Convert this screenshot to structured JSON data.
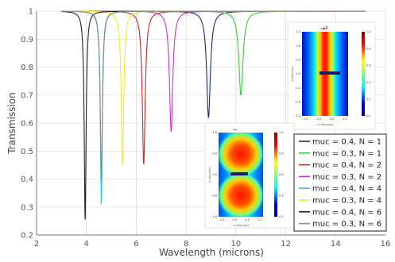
{
  "chart_data": [
    {
      "type": "line",
      "xlabel": "Wavelength (microns)",
      "ylabel": "Transmission",
      "xlim": [
        2,
        16
      ],
      "ylim": [
        0.2,
        1.0
      ],
      "x_ticks": [
        "2",
        "4",
        "6",
        "8",
        "10",
        "12",
        "14",
        "16"
      ],
      "y_ticks": [
        "0.2",
        "0.3",
        "0.4",
        "0.5",
        "0.6",
        "0.7",
        "0.8",
        "0.9",
        "1"
      ],
      "grid": true,
      "legend_position": "bottom-right",
      "series": [
        {
          "name": "muc = 0.4, N = 1",
          "color": "#1a2a8a",
          "x_range": [
            3.0,
            15.2
          ],
          "dip_x": 8.9,
          "dip_y": 0.62,
          "dip_width": 0.09
        },
        {
          "name": "muc = 0.3, N = 1",
          "color": "#33cc33",
          "x_range": [
            3.0,
            15.2
          ],
          "dip_x": 10.2,
          "dip_y": 0.7,
          "dip_width": 0.1
        },
        {
          "name": "muc = 0.4, N = 2",
          "color": "#cc2222",
          "x_range": [
            3.0,
            15.2
          ],
          "dip_x": 6.3,
          "dip_y": 0.455,
          "dip_width": 0.07
        },
        {
          "name": "muc = 0.3, N = 2",
          "color": "#cc33cc",
          "x_range": [
            3.0,
            15.2
          ],
          "dip_x": 7.4,
          "dip_y": 0.57,
          "dip_width": 0.08
        },
        {
          "name": "muc = 0.4, N = 4",
          "color": "#22ccee",
          "x_range": [
            3.0,
            15.2
          ],
          "dip_x": 4.6,
          "dip_y": 0.31,
          "dip_width": 0.05
        },
        {
          "name": "muc = 0.3, N = 4",
          "color": "#eeee22",
          "x_range": [
            3.0,
            15.2
          ],
          "dip_x": 5.45,
          "dip_y": 0.45,
          "dip_width": 0.06
        },
        {
          "name": "muc = 0.4, N = 6",
          "color": "#222222",
          "x_range": [
            3.0,
            15.2
          ],
          "dip_x": 3.95,
          "dip_y": 0.255,
          "dip_width": 0.045
        },
        {
          "name": "muc = 0.3, N = 6",
          "color": "#888888",
          "x_range": [
            3.0,
            15.2
          ],
          "dip_x": 4.6,
          "dip_y": 0.4,
          "dip_width": 0.05
        }
      ]
    },
    {
      "type": "heatmap",
      "title": "الف",
      "xlabel": "x (microns)",
      "ylabel": "y (microns)",
      "x_ticks": [
        "-1.5",
        "-0.5",
        "0.5",
        "1.5"
      ],
      "y_ticks": [
        "1.2",
        "0.8",
        "0.4",
        "0.0",
        "-0.4",
        "-0.8",
        "-1.2"
      ],
      "colorbar_ticks": [
        "1.0",
        "0.8",
        "0.6",
        "0.4",
        "0.2",
        "0.0"
      ],
      "colormap": "jet"
    },
    {
      "type": "heatmap",
      "title": "ب",
      "xlabel": "x (microns)",
      "ylabel": "y (microns)",
      "x_ticks": [
        "-1.5",
        "-0.5",
        "0.5",
        "1.5"
      ],
      "y_ticks": [
        "1.6",
        "0.8",
        "0.0",
        "-0.8",
        "-1.6"
      ],
      "colorbar_ticks": [
        "1.0",
        "0.8",
        "0.6",
        "0.4",
        "0.2"
      ],
      "colormap": "jet"
    }
  ]
}
